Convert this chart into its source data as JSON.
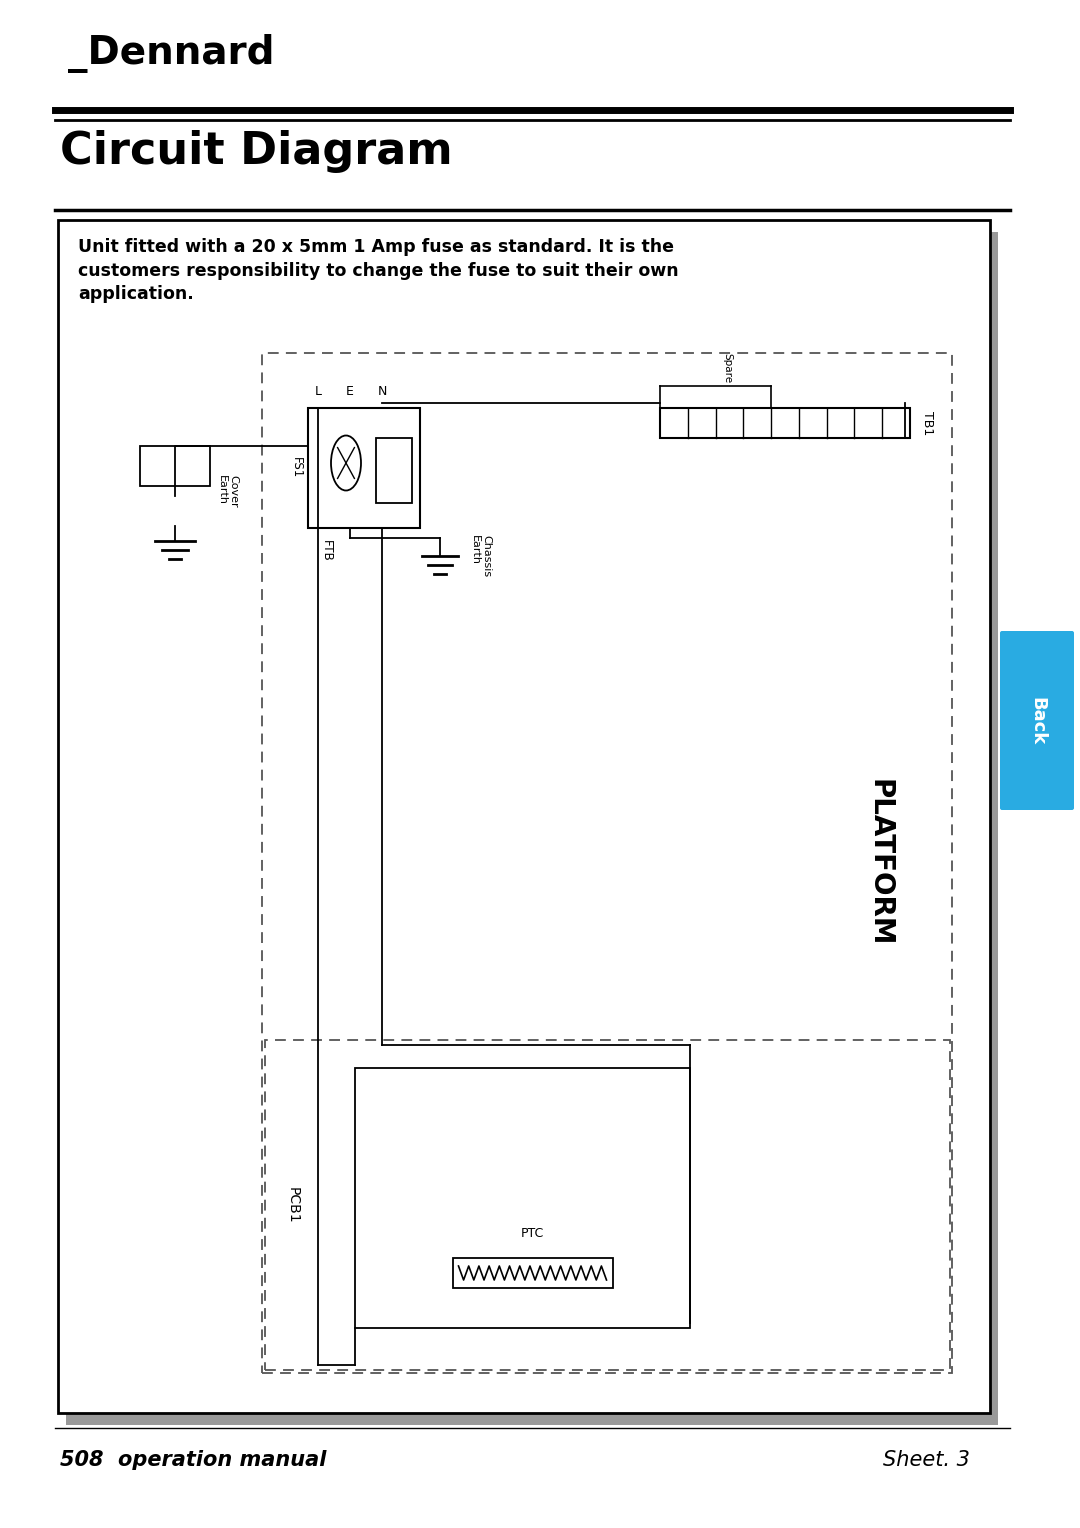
{
  "title": "Circuit Diagram",
  "brand": "⁠Dennard",
  "footer_left": "508  operation manual",
  "footer_right": "Sheet. 3",
  "warning_text": "Unit fitted with a 20 x 5mm 1 Amp fuse as standard. It is the\ncustomers responsibility to change the fuse to suit their own\napplication.",
  "back_tab_color": "#29ABE2",
  "back_tab_text": "Back",
  "bg_color": "#ffffff",
  "line_color": "#000000"
}
